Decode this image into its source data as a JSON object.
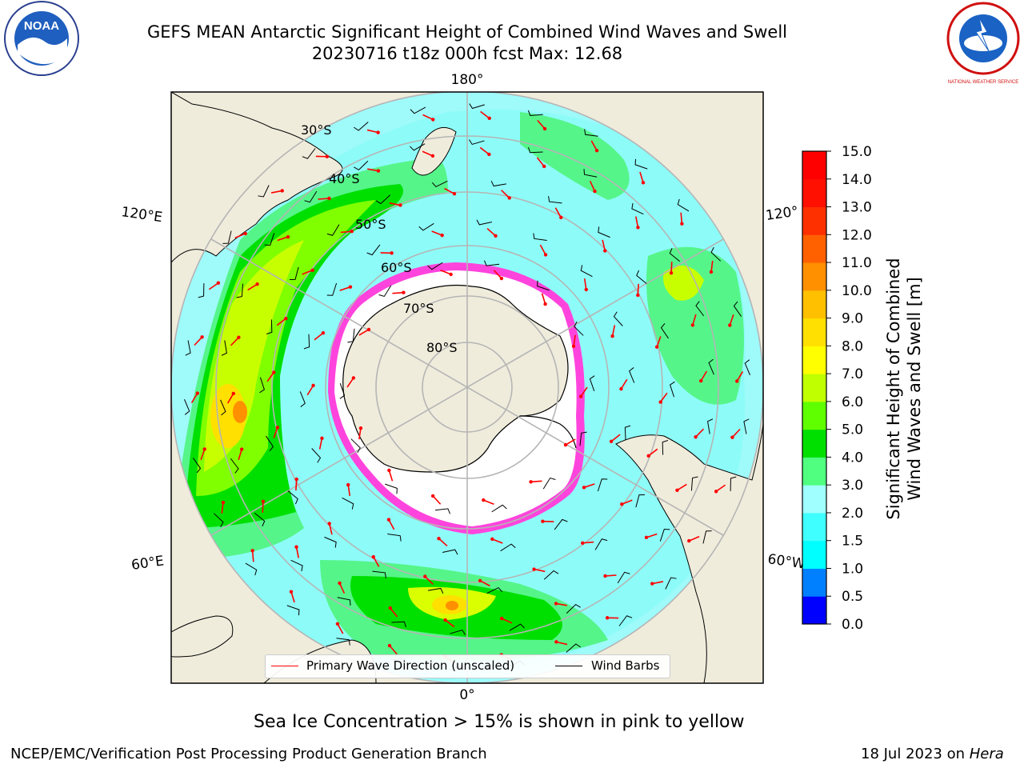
{
  "title_line1": "GEFS MEAN Antarctic Significant Height of Combined Wind Waves and Swell",
  "title_line2": "20230716 t18z 000h fcst   Max: 12.68",
  "longitude_labels": {
    "top": "180°",
    "bottom": "0°",
    "upper_left": "120°E",
    "lower_left": "60°E",
    "upper_right": "120°",
    "lower_right": "60°W"
  },
  "latitude_labels": [
    "30°S",
    "40°S",
    "50°S",
    "60°S",
    "70°S",
    "80°S"
  ],
  "legend": {
    "wave_label": "Primary Wave Direction (unscaled)",
    "wind_label": "Wind Barbs",
    "wave_color": "#ff0000",
    "wind_color": "#000000"
  },
  "colorbar": {
    "label_line1": "Significant Height of Combined",
    "label_line2": "Wind Waves and Swell [m]",
    "ticks": [
      "0.0",
      "0.5",
      "1.0",
      "1.5",
      "2.0",
      "3.0",
      "4.0",
      "5.0",
      "6.0",
      "7.0",
      "8.0",
      "9.0",
      "10.0",
      "11.0",
      "12.0",
      "13.0",
      "14.0",
      "15.0"
    ],
    "colors": [
      "#0000ff",
      "#0080ff",
      "#00ffff",
      "#40ffff",
      "#a0ffff",
      "#50ff80",
      "#00e000",
      "#60ff00",
      "#c0ff00",
      "#ffff00",
      "#ffe000",
      "#ffc000",
      "#ff9000",
      "#ff6000",
      "#ff3000",
      "#ff1000",
      "#ff0000"
    ]
  },
  "sea_ice_note": "Sea Ice Concentration > 15% is shown in pink to yellow",
  "footer_left": "NCEP/EMC/Verification Post Processing Product Generation Branch",
  "footer_right_date": "18 Jul 2023 on ",
  "footer_right_host": "Hera",
  "logos": {
    "noaa": "NOAA",
    "nws": "NATIONAL WEATHER SERVICE"
  }
}
